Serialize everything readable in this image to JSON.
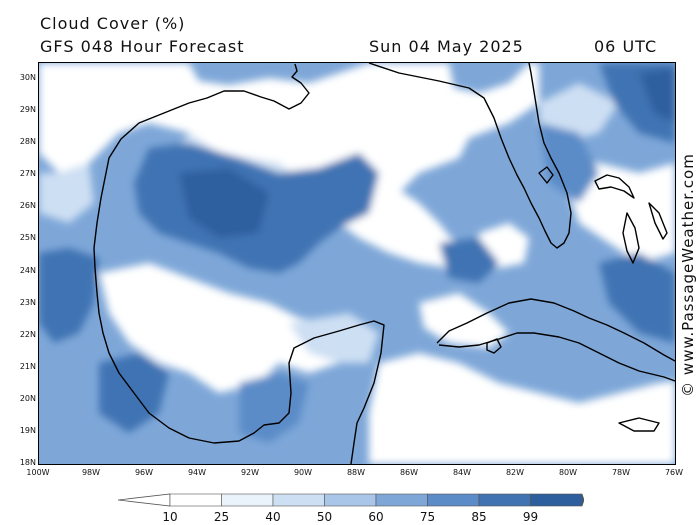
{
  "header": {
    "title": "Cloud Cover (%)",
    "subtitle": "GFS 048 Hour Forecast",
    "date": "Sun 04 May 2025",
    "time": "06 UTC"
  },
  "map": {
    "lat_labels": [
      "30N",
      "29N",
      "28N",
      "27N",
      "26N",
      "25N",
      "24N",
      "23N",
      "22N",
      "21N",
      "20N",
      "19N",
      "18N"
    ],
    "lon_labels": [
      "100W",
      "98W",
      "96W",
      "94W",
      "92W",
      "90W",
      "88W",
      "86W",
      "84W",
      "82W",
      "80W",
      "78W",
      "76W"
    ],
    "lat_range": [
      18,
      30.5
    ],
    "lon_range": [
      -100,
      -76
    ],
    "colors": {
      "c10": "#ffffff",
      "c25": "#eaf2fb",
      "c40": "#cddff3",
      "c50": "#a9c6e8",
      "c60": "#7ea7d8",
      "c75": "#5b8cc8",
      "c85": "#4173b3",
      "c99": "#2d5f9e",
      "coast": "#000000"
    }
  },
  "legend": {
    "ticks": [
      "10",
      "25",
      "40",
      "50",
      "60",
      "75",
      "85",
      "99"
    ]
  },
  "watermark": "© www.PassageWeather.com"
}
